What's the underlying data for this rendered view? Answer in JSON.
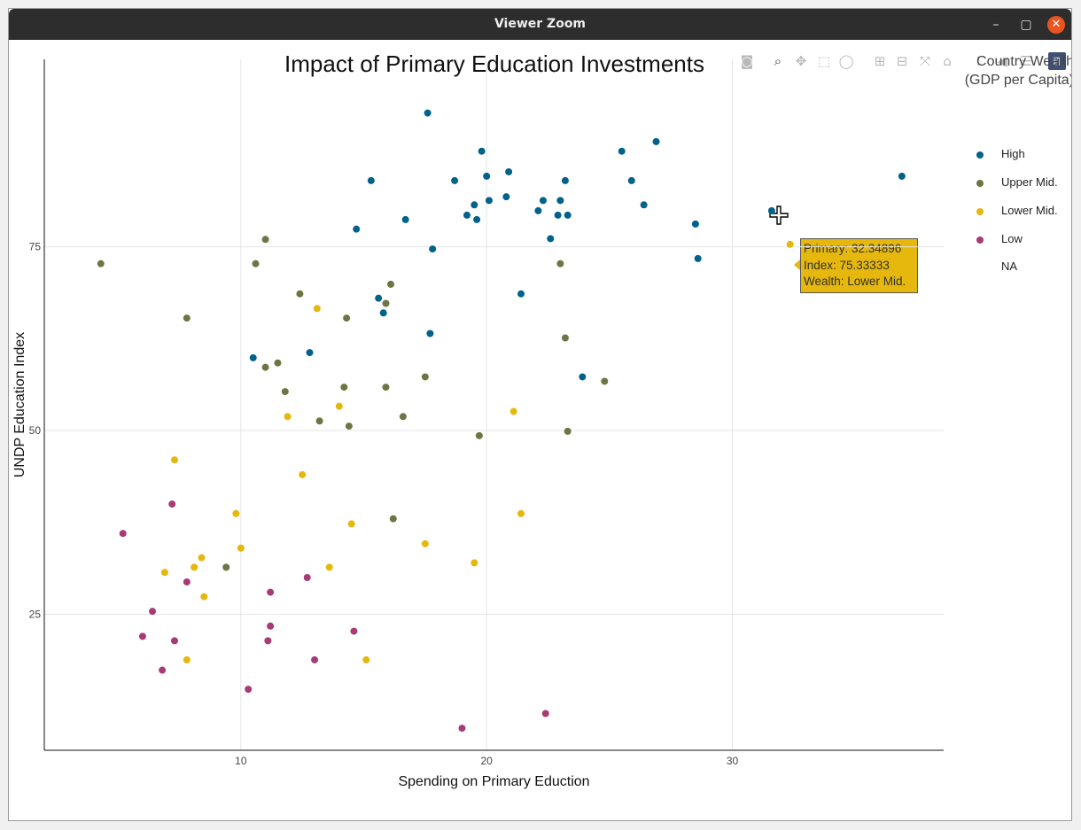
{
  "window": {
    "title": "Viewer Zoom",
    "controls": {
      "minimize": "–",
      "maximize": "▢",
      "close": "✕"
    }
  },
  "modebar": {
    "icons": [
      "camera-icon",
      "zoom-icon",
      "pan-icon",
      "box-select-icon",
      "lasso-icon",
      "zoom-in-icon",
      "zoom-out-icon",
      "autoscale-icon",
      "reset-axes-icon",
      "spike-lines-icon",
      "hover-closest-icon",
      "hover-compare-icon",
      "plotly-logo-icon"
    ],
    "active": "zoom-icon"
  },
  "legend": {
    "title_line1": "Country Wealth",
    "title_line2": "(GDP per Capita)",
    "items": [
      {
        "label": "High",
        "color": "#00628b"
      },
      {
        "label": "Upper Mid.",
        "color": "#6e7545"
      },
      {
        "label": "Lower Mid.",
        "color": "#e6b70c"
      },
      {
        "label": "Low",
        "color": "#a83a75"
      },
      {
        "label": "NA",
        "color": "#ffffff"
      }
    ]
  },
  "tooltip": {
    "line1": "Primary: 32.34896",
    "line2": "Index: 75.33333",
    "line3": "Wealth: Lower Mid.",
    "color": "#e6b70c"
  },
  "chart_data": {
    "type": "scatter",
    "title": "Impact of Primary Education Investments",
    "xlabel": "Spending on Primary Eduction",
    "ylabel": "UNDP Education Index",
    "xlim": [
      2,
      38.6
    ],
    "ylim": [
      6.5,
      100.5
    ],
    "xticks": [
      10,
      20,
      30
    ],
    "yticks": [
      25,
      50,
      75
    ],
    "grid": true,
    "legend_position": "right",
    "series": [
      {
        "name": "High",
        "color": "#00628b",
        "points": [
          [
            17.6,
            93.2
          ],
          [
            19.8,
            88
          ],
          [
            25.5,
            88
          ],
          [
            26.9,
            89.3
          ],
          [
            15.3,
            84
          ],
          [
            18.7,
            84
          ],
          [
            20,
            84.6
          ],
          [
            20.9,
            85.2
          ],
          [
            23.2,
            84
          ],
          [
            25.9,
            84
          ],
          [
            36.9,
            84.6
          ],
          [
            20.1,
            81.3
          ],
          [
            19.5,
            80.7
          ],
          [
            20.8,
            81.8
          ],
          [
            22.3,
            81.3
          ],
          [
            23,
            81.3
          ],
          [
            26.4,
            80.7
          ],
          [
            19.2,
            79.3
          ],
          [
            19.6,
            78.7
          ],
          [
            22.1,
            79.9
          ],
          [
            22.9,
            79.3
          ],
          [
            23.3,
            79.3
          ],
          [
            16.7,
            78.7
          ],
          [
            28.5,
            78.1
          ],
          [
            31.6,
            79.9
          ],
          [
            14.7,
            77.4
          ],
          [
            22.6,
            76.1
          ],
          [
            17.8,
            74.7
          ],
          [
            28.6,
            73.4
          ],
          [
            15.6,
            68
          ],
          [
            21.4,
            68.6
          ],
          [
            15.8,
            66
          ],
          [
            17.7,
            63.2
          ],
          [
            12.8,
            60.6
          ],
          [
            10.5,
            59.9
          ],
          [
            23.9,
            57.3
          ]
        ]
      },
      {
        "name": "Upper Mid.",
        "color": "#6e7545",
        "points": [
          [
            11,
            76
          ],
          [
            4.3,
            72.7
          ],
          [
            10.6,
            72.7
          ],
          [
            23,
            72.7
          ],
          [
            16.1,
            69.9
          ],
          [
            12.4,
            68.6
          ],
          [
            15.9,
            67.3
          ],
          [
            7.8,
            65.3
          ],
          [
            14.3,
            65.3
          ],
          [
            23.2,
            62.6
          ],
          [
            11,
            58.6
          ],
          [
            11.5,
            59.2
          ],
          [
            17.5,
            57.3
          ],
          [
            24.8,
            56.7
          ],
          [
            14.2,
            55.9
          ],
          [
            15.9,
            55.9
          ],
          [
            11.8,
            55.3
          ],
          [
            16.6,
            51.9
          ],
          [
            13.2,
            51.3
          ],
          [
            14.4,
            50.6
          ],
          [
            23.3,
            49.9
          ],
          [
            19.7,
            49.3
          ],
          [
            16.2,
            38
          ],
          [
            9.4,
            31.4
          ]
        ]
      },
      {
        "name": "Lower Mid.",
        "color": "#e6b70c",
        "points": [
          [
            13.1,
            66.6
          ],
          [
            32.35,
            75.33
          ],
          [
            14,
            53.3
          ],
          [
            21.1,
            52.6
          ],
          [
            11.9,
            51.9
          ],
          [
            7.3,
            46
          ],
          [
            12.5,
            44
          ],
          [
            9.8,
            38.7
          ],
          [
            21.4,
            38.7
          ],
          [
            14.5,
            37.3
          ],
          [
            10,
            34
          ],
          [
            17.5,
            34.6
          ],
          [
            8.4,
            32.7
          ],
          [
            19.5,
            32
          ],
          [
            6.9,
            30.7
          ],
          [
            8.1,
            31.4
          ],
          [
            13.6,
            31.4
          ],
          [
            8.5,
            27.4
          ],
          [
            7.8,
            18.8
          ],
          [
            15.1,
            18.8
          ]
        ]
      },
      {
        "name": "Low",
        "color": "#a83a75",
        "points": [
          [
            7.2,
            40
          ],
          [
            5.2,
            36
          ],
          [
            7.8,
            29.4
          ],
          [
            12.7,
            30
          ],
          [
            11.2,
            28
          ],
          [
            6.4,
            25.4
          ],
          [
            11.2,
            23.4
          ],
          [
            14.6,
            22.7
          ],
          [
            6,
            22
          ],
          [
            7.3,
            21.4
          ],
          [
            11.1,
            21.4
          ],
          [
            6.8,
            17.4
          ],
          [
            13,
            18.8
          ],
          [
            10.3,
            14.8
          ],
          [
            22.4,
            11.5
          ],
          [
            19,
            9.5
          ]
        ]
      }
    ]
  }
}
